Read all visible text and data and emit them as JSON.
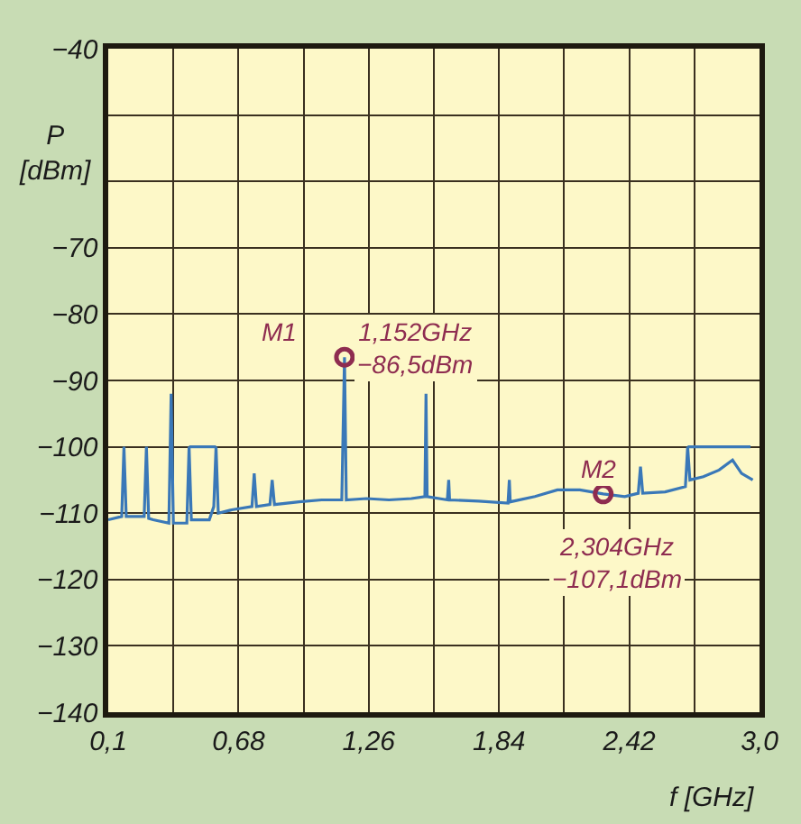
{
  "chart_data": {
    "type": "line",
    "xlabel": "f [GHz]",
    "ylabel": "P\n[dBm]",
    "xlim": [
      0.1,
      3.0
    ],
    "ylim": [
      -140,
      -40
    ],
    "xticks": [
      {
        "value": 0.1,
        "label": "0,1"
      },
      {
        "value": 0.39,
        "label": null
      },
      {
        "value": 0.68,
        "label": "0,68"
      },
      {
        "value": 0.97,
        "label": null
      },
      {
        "value": 1.26,
        "label": "1,26"
      },
      {
        "value": 1.55,
        "label": null
      },
      {
        "value": 1.84,
        "label": "1,84"
      },
      {
        "value": 2.13,
        "label": null
      },
      {
        "value": 2.42,
        "label": "2,42"
      },
      {
        "value": 2.71,
        "label": null
      },
      {
        "value": 3.0,
        "label": "3,0"
      }
    ],
    "yticks": [
      {
        "value": -140,
        "label": "−140"
      },
      {
        "value": -130,
        "label": "−130"
      },
      {
        "value": -120,
        "label": "−120"
      },
      {
        "value": -110,
        "label": "−110"
      },
      {
        "value": -100,
        "label": "−100"
      },
      {
        "value": -90,
        "label": "−90"
      },
      {
        "value": -80,
        "label": "−80"
      },
      {
        "value": -70,
        "label": "−70"
      },
      {
        "value": -60,
        "label": null
      },
      {
        "value": -50,
        "label": null
      },
      {
        "value": -40,
        "label": "−40"
      }
    ],
    "grid": true,
    "series": [
      {
        "type": "line",
        "color": "#3a78b8",
        "x": [
          0.1,
          0.16,
          0.17,
          0.18,
          0.26,
          0.27,
          0.28,
          0.3,
          0.37,
          0.38,
          0.39,
          0.45,
          0.46,
          0.47,
          0.55,
          0.57,
          0.58,
          0.59,
          0.65,
          0.74,
          0.75,
          0.76,
          0.82,
          0.83,
          0.84,
          0.95,
          1.05,
          1.14,
          1.152,
          1.16,
          1.25,
          1.35,
          1.45,
          1.51,
          1.515,
          1.52,
          1.61,
          1.616,
          1.62,
          1.75,
          1.88,
          1.886,
          1.89,
          2.0,
          2.1,
          2.2,
          2.304,
          2.4,
          2.46,
          2.47,
          2.48,
          2.58,
          2.67,
          2.68,
          2.69,
          2.75,
          2.82,
          2.88,
          2.92,
          2.97
        ],
        "values": [
          -111,
          -110.5,
          -100,
          -110.5,
          -110.5,
          -100,
          -110.8,
          -111,
          -111.5,
          -92,
          -111.5,
          -111.5,
          -100,
          -111,
          -111,
          -109,
          -100,
          -110,
          -109.5,
          -109,
          -104,
          -109,
          -108.7,
          -105,
          -108.7,
          -108.3,
          -108,
          -108,
          -86.5,
          -108,
          -107.8,
          -108,
          -107.8,
          -107.5,
          -92,
          -107.5,
          -108,
          -105,
          -108,
          -108.2,
          -108.5,
          -105,
          -108.3,
          -107.5,
          -106.5,
          -106.5,
          -107.1,
          -107.5,
          -107,
          -103,
          -107,
          -106.8,
          -106,
          -100,
          -105,
          -104.5,
          -103.5,
          -102,
          -104,
          -105
        ]
      },
      {
        "type": "line",
        "color": "#3a78b8",
        "x": [
          0.46,
          0.58,
          0.6,
          2.68,
          2.96
        ],
        "values": [
          -100,
          -100,
          null,
          -100,
          -100
        ]
      },
      {
        "type": "scatter",
        "color": "#8e2c50",
        "marker": "circle",
        "x": [
          1.152,
          2.304
        ],
        "values": [
          -86.5,
          -107.1
        ]
      }
    ],
    "annotations": [
      "M1",
      "1,152GHz\n−86,5dBm",
      "M2",
      "2,304GHz\n−107,1dBm"
    ]
  }
}
